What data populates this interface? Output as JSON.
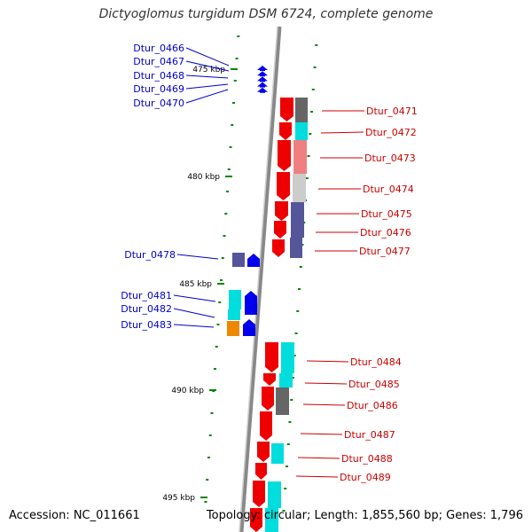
{
  "title": "Dictyoglomus turgidum DSM 6724, complete genome",
  "accession": "Accession: NC_011661",
  "topology": "Topology: circular; Length: 1,855,560 bp; Genes: 1,796",
  "ticks": [
    "475 kbp",
    "480 kbp",
    "485 kbp",
    "490 kbp",
    "495 kbp"
  ],
  "colors": {
    "left_labels": "#0000cc",
    "right_labels": "#cc0000",
    "backbone": "#888888",
    "minor_ticks": "#008800",
    "red_gene": "#ee0000",
    "blue_gene": "#0000ee",
    "cyan_cog": "#00dddd",
    "grey_cog": "#666666",
    "salmon_cog": "#f08080",
    "lightgrey_cog": "#cccccc",
    "purple_cog": "#555599",
    "orange_cog": "#ee8800"
  },
  "left_genes": [
    "Dtur_0466",
    "Dtur_0467",
    "Dtur_0468",
    "Dtur_0469",
    "Dtur_0470",
    "Dtur_0478",
    "Dtur_0481",
    "Dtur_0482",
    "Dtur_0483"
  ],
  "right_genes": [
    "Dtur_0471",
    "Dtur_0472",
    "Dtur_0473",
    "Dtur_0474",
    "Dtur_0475",
    "Dtur_0476",
    "Dtur_0477",
    "Dtur_0484",
    "Dtur_0485",
    "Dtur_0486",
    "Dtur_0487",
    "Dtur_0488",
    "Dtur_0489"
  ]
}
